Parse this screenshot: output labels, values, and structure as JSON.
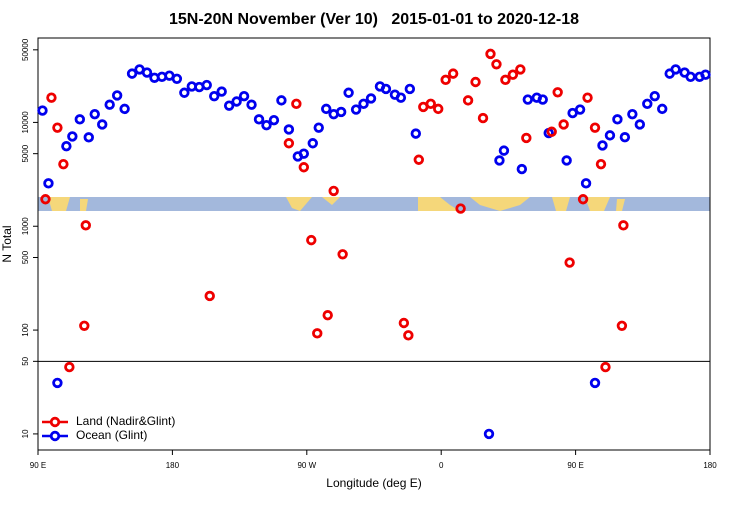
{
  "chart_data": {
    "type": "scatter",
    "title": "15N-20N November (Ver 10)   2015-01-01 to 2020-12-18",
    "x_label": "Longitude (deg E)",
    "y_label": "N Total",
    "xlim": [
      90,
      540
    ],
    "xticks": [
      {
        "value": 90,
        "label": "90 E"
      },
      180,
      {
        "value": 270,
        "label": "90 W"
      },
      {
        "value": 360,
        "label": "0"
      },
      {
        "value": 450,
        "label": "90 E"
      },
      {
        "value": 540,
        "label": "180"
      }
    ],
    "ylim": [
      7,
      65000
    ],
    "yticks": [
      10,
      50,
      100,
      500,
      1000,
      5000,
      10000,
      50000
    ],
    "y_scale": "log",
    "reference_line": 50,
    "legend_position": "bottom-left",
    "series": [
      {
        "name": "Ocean (Glint)",
        "color": "#0000ee",
        "x": [
          93,
          97,
          103,
          109,
          113,
          118,
          124,
          128,
          133,
          138,
          143,
          148,
          153,
          158,
          163,
          168,
          173,
          178,
          183,
          188,
          193,
          198,
          203,
          208,
          213,
          218,
          223,
          228,
          233,
          238,
          243,
          248,
          253,
          258,
          264,
          268,
          274,
          278,
          283,
          288,
          293,
          298,
          303,
          308,
          313,
          319,
          323,
          329,
          333,
          339,
          343,
          392,
          399,
          402,
          414,
          418,
          424,
          428,
          432,
          444,
          448,
          453,
          457,
          463,
          468,
          473,
          478,
          483,
          488,
          493,
          498,
          503,
          508,
          513,
          517,
          523,
          527,
          533,
          537
        ],
        "values": [
          13000,
          2590,
          31,
          5900,
          7330,
          10700,
          7180,
          12000,
          9550,
          14800,
          18200,
          13500,
          29500,
          32400,
          30200,
          26900,
          27500,
          28200,
          26300,
          19300,
          22200,
          21900,
          22900,
          17900,
          19800,
          14500,
          15900,
          17900,
          14800,
          10700,
          9400,
          10500,
          16300,
          8550,
          4700,
          5000,
          6300,
          8900,
          13500,
          12000,
          12600,
          19300,
          13300,
          15100,
          17000,
          22200,
          21000,
          18500,
          17300,
          21000,
          7800,
          10,
          4300,
          5350,
          3550,
          16600,
          17300,
          16600,
          7900,
          4300,
          12300,
          13300,
          2590,
          31,
          6000,
          7500,
          10700,
          7200,
          12000,
          9550,
          15100,
          17900,
          13500,
          29500,
          32400,
          30200,
          27500,
          27500,
          28800
        ]
      },
      {
        "name": "Land (Nadir&Glint)",
        "color": "#ee0000",
        "x": [
          95,
          99,
          103,
          107,
          111,
          121,
          122,
          205,
          258,
          263,
          268,
          273,
          277,
          284,
          288,
          294,
          335,
          338,
          345,
          348,
          353,
          358,
          363,
          368,
          373,
          378,
          383,
          388,
          393,
          397,
          403,
          408,
          413,
          417,
          434,
          438,
          442,
          446,
          455,
          458,
          463,
          467,
          470,
          481,
          482
        ],
        "values": [
          1820,
          17300,
          8900,
          3960,
          44,
          110,
          1020,
          213,
          6300,
          15100,
          3700,
          735,
          93,
          139,
          2190,
          537,
          117,
          89,
          4370,
          14100,
          15100,
          13500,
          25700,
          29500,
          1480,
          16300,
          24500,
          11000,
          45700,
          36300,
          25700,
          28800,
          32400,
          7080,
          8130,
          19500,
          9550,
          447,
          1820,
          17300,
          8900,
          3960,
          44,
          110,
          1020
        ]
      }
    ]
  }
}
